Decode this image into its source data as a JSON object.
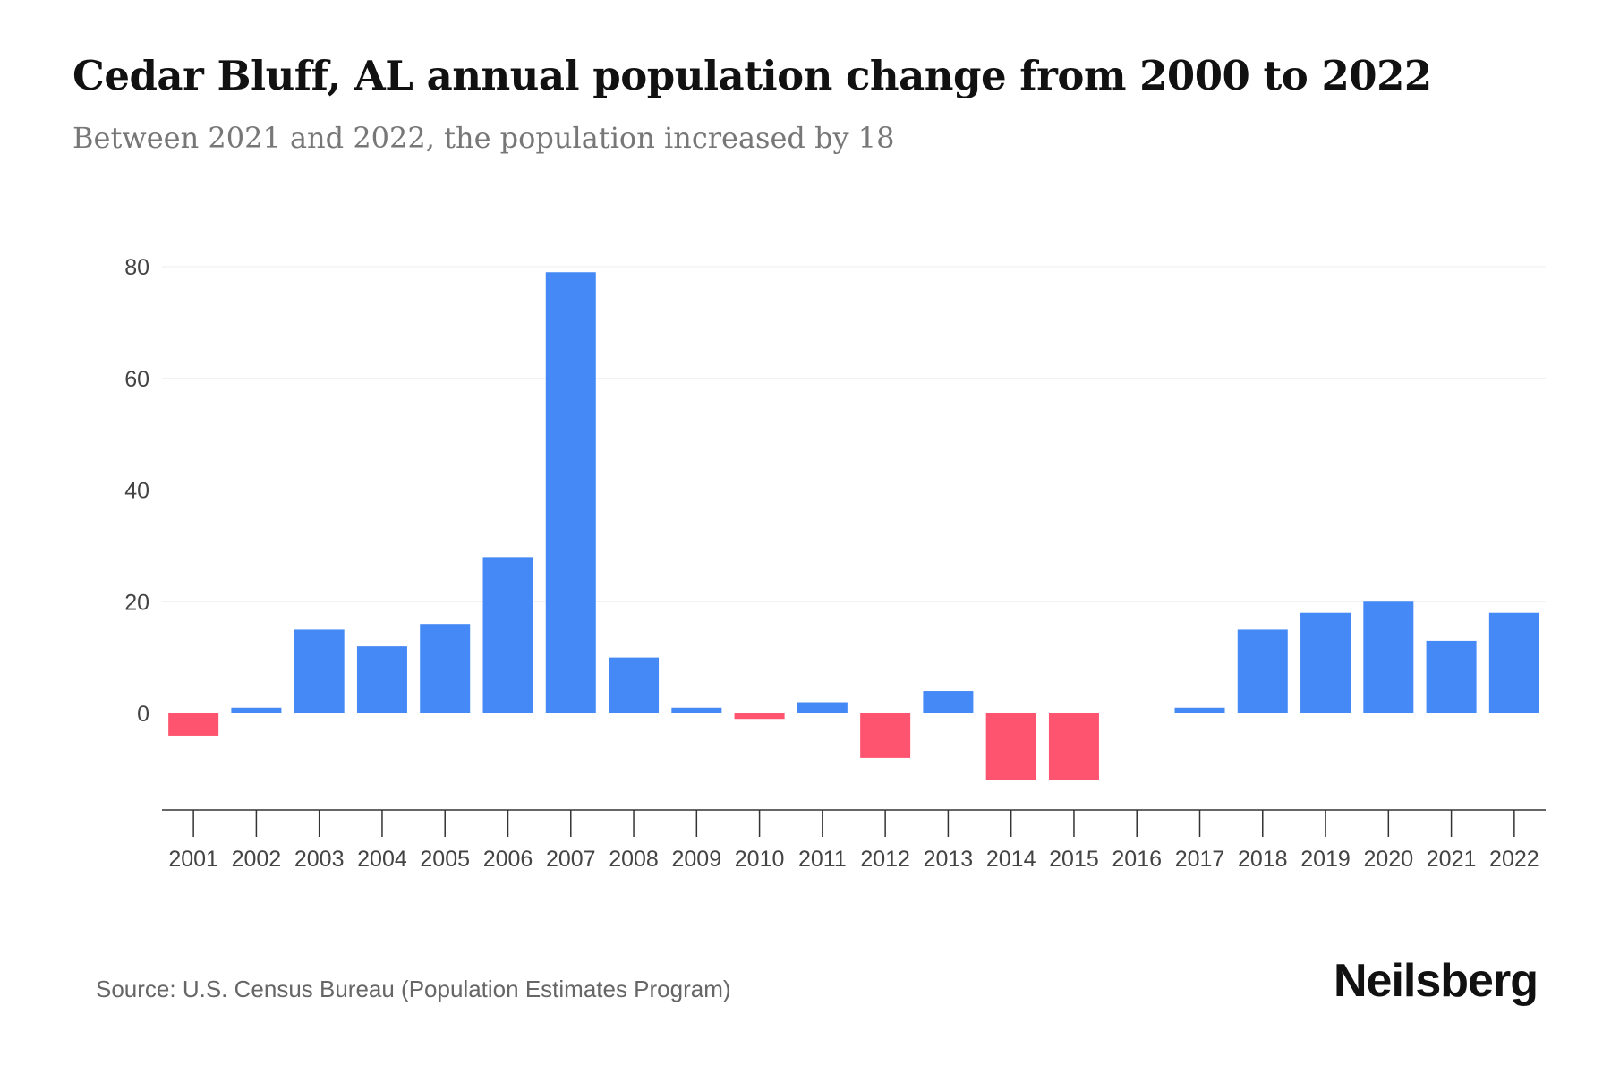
{
  "title": "Cedar Bluff, AL annual population change from 2000 to 2022",
  "subtitle": "Between 2021 and 2022, the population increased by 18",
  "source": "Source: U.S. Census Bureau (Population Estimates Program)",
  "logo": "Neilsberg",
  "colors": {
    "positive": "#4489f5",
    "negative": "#ff5470"
  },
  "chart_data": {
    "type": "bar",
    "title": "Cedar Bluff, AL annual population change from 2000 to 2022",
    "xlabel": "",
    "ylabel": "",
    "categories": [
      "2001",
      "2002",
      "2003",
      "2004",
      "2005",
      "2006",
      "2007",
      "2008",
      "2009",
      "2010",
      "2011",
      "2012",
      "2013",
      "2014",
      "2015",
      "2016",
      "2017",
      "2018",
      "2019",
      "2020",
      "2021",
      "2022"
    ],
    "values": [
      -4,
      1,
      15,
      12,
      16,
      28,
      79,
      10,
      1,
      -1,
      2,
      -8,
      4,
      -12,
      -12,
      0,
      1,
      15,
      18,
      20,
      13,
      18
    ],
    "ylim": [
      -17,
      80
    ],
    "yticks": [
      0,
      20,
      40,
      60,
      80
    ],
    "grid": true,
    "legend": "none"
  }
}
